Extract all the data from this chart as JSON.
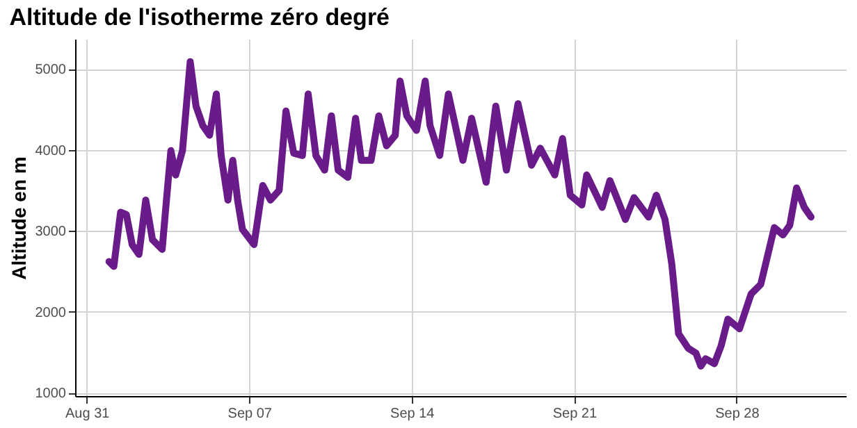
{
  "chart_data": {
    "type": "line",
    "title": "Altitude de l'isotherme zéro degré",
    "ylabel": "Altitude en m",
    "x": [
      "--08-31T23:00",
      "--09-01T04:00",
      "--09-01T11:00",
      "--09-01T17:00",
      "--09-01T23:00",
      "--09-02T06:00",
      "--09-02T13:00",
      "--09-02T20:00",
      "--09-03T06:00",
      "--09-03T10:00",
      "--09-03T15:00",
      "--09-03T20:00",
      "--09-04T03:00",
      "--09-04T11:00",
      "--09-04T17:00",
      "--09-05T00:00",
      "--09-05T07:00",
      "--09-05T14:00",
      "--09-05T19:00",
      "--09-06T02:00",
      "--09-06T07:00",
      "--09-06T12:00",
      "--09-06T17:00",
      "--09-07T05:00",
      "--09-07T14:00",
      "--09-07T22:00",
      "--09-08T07:00",
      "--09-08T14:00",
      "--09-08T22:00",
      "--09-09T07:00",
      "--09-09T13:00",
      "--09-09T21:00",
      "--09-10T06:00",
      "--09-10T13:00",
      "--09-10T20:00",
      "--09-11T06:00",
      "--09-11T14:00",
      "--09-11T20:00",
      "--09-12T06:00",
      "--09-12T14:00",
      "--09-12T22:00",
      "--09-13T07:00",
      "--09-13T12:00",
      "--09-13T19:00",
      "--09-14T05:00",
      "--09-14T14:00",
      "--09-14T19:00",
      "--09-15T05:00",
      "--09-15T14:00",
      "--09-16T05:00",
      "--09-16T14:00",
      "--09-17T05:00",
      "--09-17T15:00",
      "--09-18T02:00",
      "--09-18T14:00",
      "--09-19T04:00",
      "--09-19T13:00",
      "--09-20T04:00",
      "--09-20T12:00",
      "--09-20T20:00",
      "--09-21T08:00",
      "--09-21T13:00",
      "--09-22T05:00",
      "--09-22T13:00",
      "--09-23T05:00",
      "--09-23T14:00",
      "--09-24T05:00",
      "--09-24T13:00",
      "--09-24T22:00",
      "--09-25T05:00",
      "--09-25T12:00",
      "--09-25T22:00",
      "--09-26T06:00",
      "--09-26T11:00",
      "--09-26T16:00",
      "--09-27T01:00",
      "--09-27T08:00",
      "--09-27T15:00",
      "--09-28T03:00",
      "--09-28T15:00",
      "--09-29T01:00",
      "--09-29T15:00",
      "--09-30T00:00",
      "--09-30T07:00",
      "--09-30T14:00",
      "--09-30T22:00",
      "--10-01T05:00"
    ],
    "series": [
      {
        "color": "#6a1b8a",
        "values": [
          2620,
          2560,
          3230,
          3200,
          2830,
          2710,
          3380,
          2890,
          2770,
          3320,
          3990,
          3690,
          3990,
          5090,
          4540,
          4300,
          4180,
          4690,
          3930,
          3380,
          3870,
          3380,
          3020,
          2830,
          3560,
          3380,
          3500,
          4480,
          3960,
          3930,
          4690,
          3930,
          3750,
          4420,
          3750,
          3660,
          4390,
          3870,
          3870,
          4420,
          4050,
          4180,
          4850,
          4420,
          4240,
          4850,
          4300,
          3930,
          4690,
          3870,
          4390,
          3600,
          4540,
          3750,
          4570,
          3810,
          4020,
          3690,
          4140,
          3440,
          3320,
          3690,
          3290,
          3620,
          3140,
          3410,
          3170,
          3440,
          3140,
          2590,
          1730,
          1550,
          1490,
          1330,
          1420,
          1360,
          1580,
          1910,
          1790,
          2220,
          2340,
          3040,
          2950,
          3070,
          3530,
          3290,
          3170
        ]
      }
    ],
    "xlim": [
      "--08-30T12:00",
      "--10-02T17:00"
    ],
    "xticks": [
      {
        "value": "--08-31",
        "label": "Aug 31"
      },
      {
        "value": "--09-07",
        "label": "Sep 07"
      },
      {
        "value": "--09-14",
        "label": "Sep 14"
      },
      {
        "value": "--09-21",
        "label": "Sep 21"
      },
      {
        "value": "--09-28",
        "label": "Sep 28"
      }
    ],
    "ylim": [
      960,
      5370
    ],
    "yticks": [
      1000,
      2000,
      3000,
      4000,
      5000
    ],
    "grid": true,
    "marker": "none",
    "line_style": "solid"
  }
}
